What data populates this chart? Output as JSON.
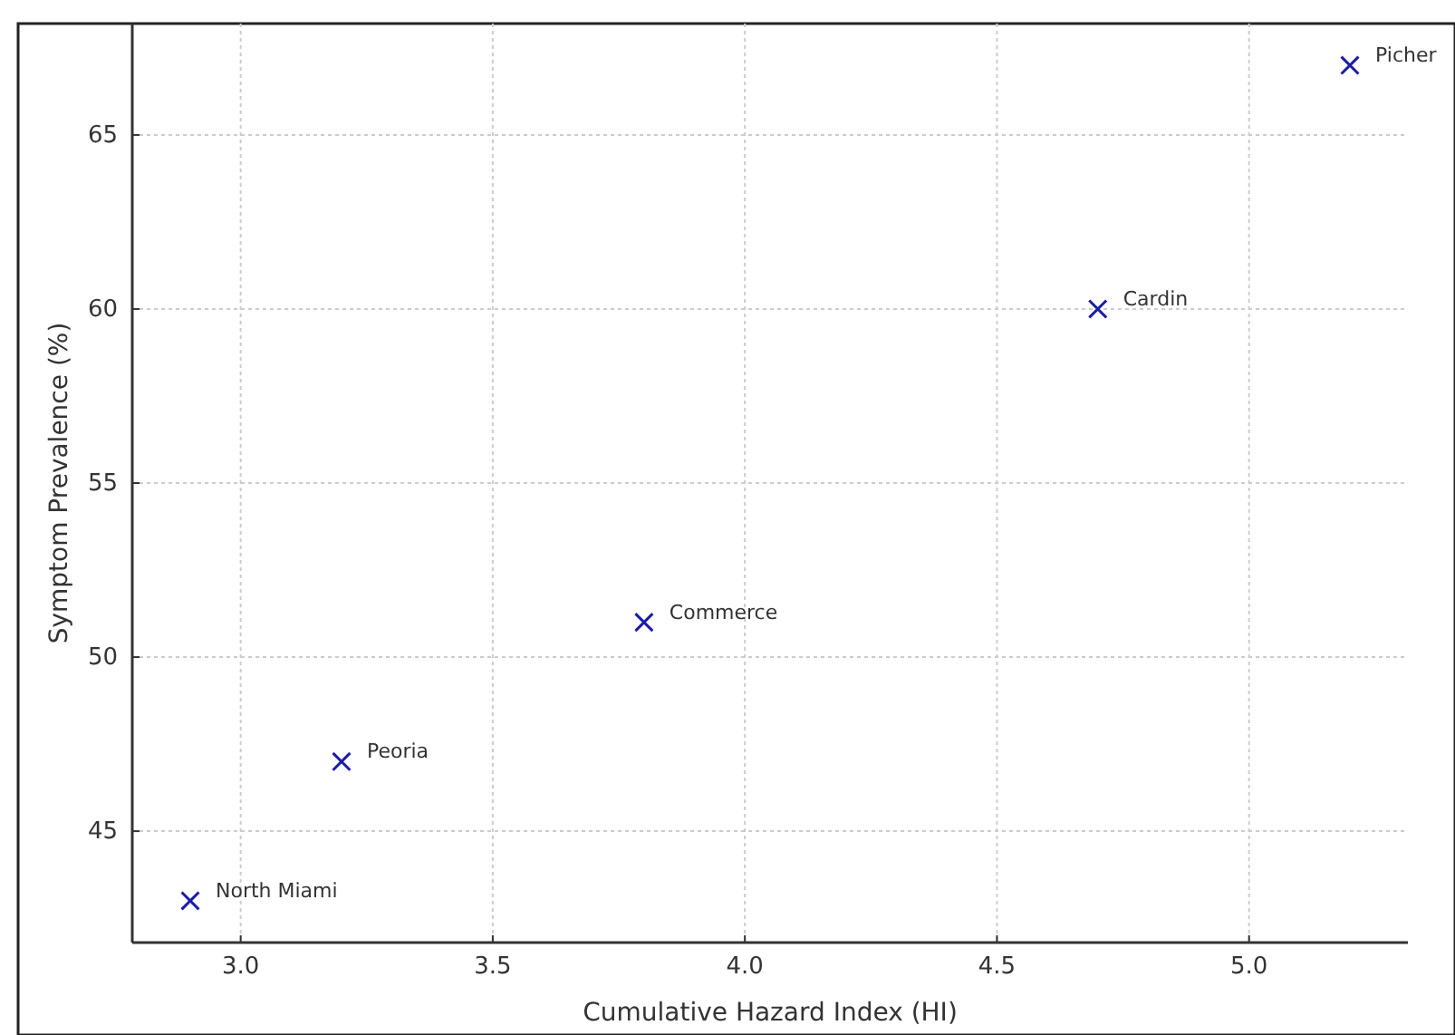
{
  "chart_data": {
    "type": "scatter",
    "xlabel": "Cumulative Hazard Index (HI)",
    "ylabel": "Symptom Prevalence (%)",
    "x": [
      2.9,
      3.2,
      3.8,
      4.7,
      5.2
    ],
    "series": [
      {
        "color": "#1c1ca8",
        "values": [
          43,
          47,
          51,
          60,
          67
        ]
      }
    ],
    "marker": "cross",
    "xlim": [
      2.785,
      5.315
    ],
    "ylim": [
      41.8,
      68.2
    ],
    "xticks": [
      {
        "value": 3,
        "label": "3.0"
      },
      {
        "value": 3.5,
        "label": "3.5"
      },
      {
        "value": 4,
        "label": "4.0"
      },
      {
        "value": 4.5,
        "label": "4.5"
      },
      {
        "value": 5,
        "label": "5.0"
      }
    ],
    "yticks": [
      45,
      50,
      55,
      60,
      65
    ],
    "grid": true,
    "annotations": [
      {
        "text": "North Miami",
        "x": 2.9,
        "y": 43
      },
      {
        "text": "Peoria",
        "x": 3.2,
        "y": 47
      },
      {
        "text": "Commerce",
        "x": 3.8,
        "y": 51
      },
      {
        "text": "Cardin",
        "x": 4.7,
        "y": 60
      },
      {
        "text": "Picher",
        "x": 5.2,
        "y": 67
      }
    ]
  }
}
